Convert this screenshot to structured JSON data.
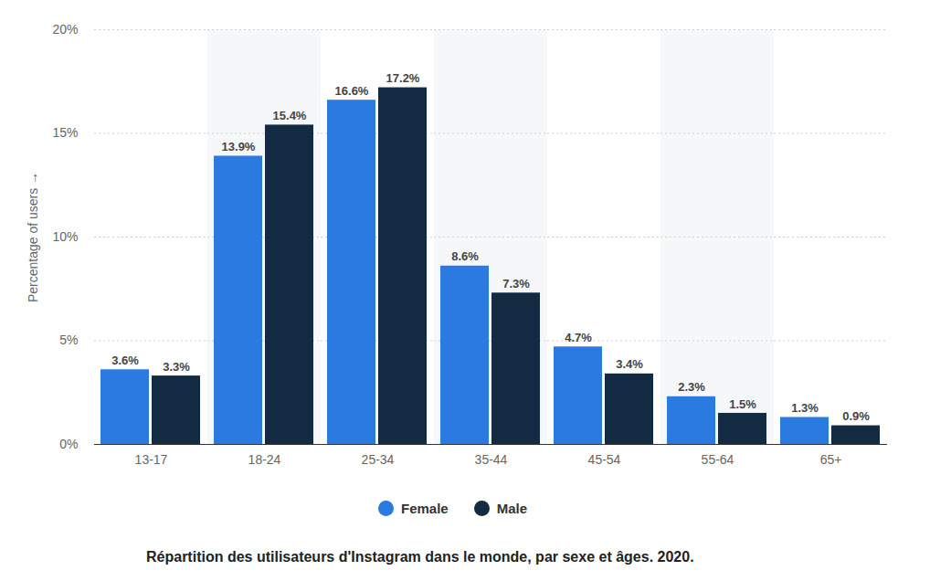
{
  "chart_data": {
    "type": "bar",
    "title": "Répartition des utilisateurs d'Instagram dans le monde, par sexe et âges. 2020.",
    "y_label": "Percentage of users",
    "categories": [
      "13-17",
      "18-24",
      "25-34",
      "35-44",
      "45-54",
      "55-64",
      "65+"
    ],
    "series": [
      {
        "name": "Female",
        "color": "#2a7ae2",
        "values": [
          3.6,
          13.9,
          16.6,
          8.6,
          4.7,
          2.3,
          1.3
        ],
        "value_labels": [
          "3.6%",
          "13.9%",
          "16.6%",
          "8.6%",
          "4.7%",
          "2.3%",
          "1.3%"
        ]
      },
      {
        "name": "Male",
        "color": "#132a43",
        "values": [
          3.3,
          15.4,
          17.2,
          7.3,
          3.4,
          1.5,
          0.9
        ],
        "value_labels": [
          "3.3%",
          "15.4%",
          "17.2%",
          "7.3%",
          "3.4%",
          "1.5%",
          "0.9%"
        ]
      }
    ],
    "ylim": [
      0,
      20
    ],
    "yticks": [
      {
        "value": 0,
        "label": "0%"
      },
      {
        "value": 5,
        "label": "5%"
      },
      {
        "value": 10,
        "label": "10%"
      },
      {
        "value": 15,
        "label": "15%"
      },
      {
        "value": 20,
        "label": "20%"
      }
    ],
    "grid": true,
    "legend": "bottom",
    "data_labels": true
  }
}
